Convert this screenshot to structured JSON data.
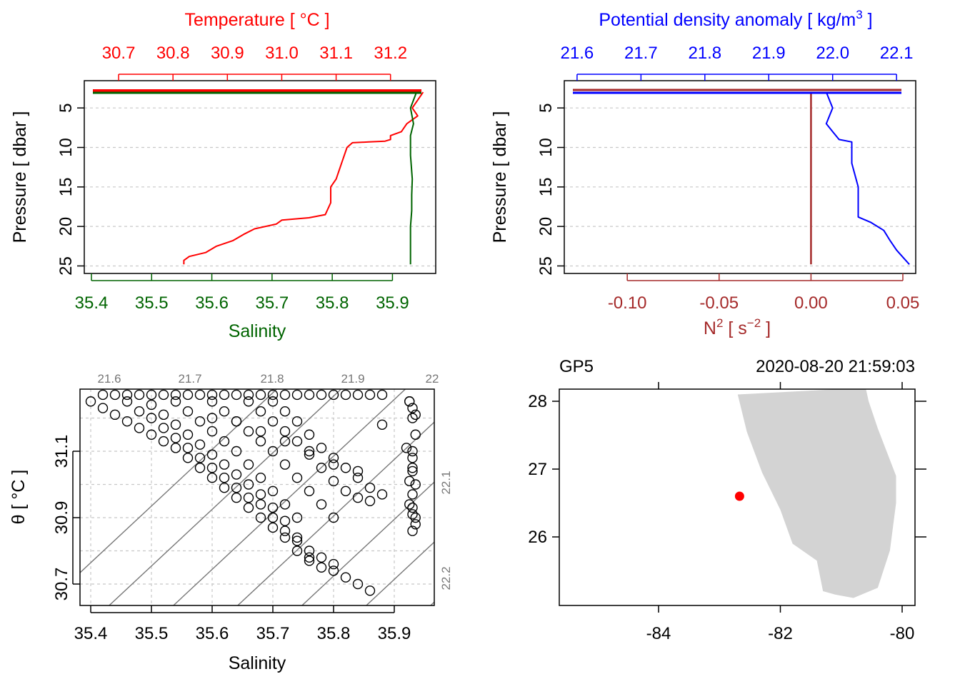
{
  "colors": {
    "temperature": "#ff0000",
    "salinity": "#006400",
    "density": "#0000ff",
    "n2": "#a52a2a",
    "grid": "#c8c8c8",
    "isopycnal": "#777777",
    "land": "#d3d3d3",
    "station": "#ff0000"
  },
  "chart_data": [
    {
      "id": "ts-profile",
      "type": "line",
      "title": "",
      "top_axis": {
        "label": "Temperature [ °C ]",
        "ticks": [
          "30.7",
          "30.8",
          "30.9",
          "31.0",
          "31.1",
          "31.2"
        ],
        "range": [
          30.65,
          31.27
        ]
      },
      "bottom_axis": {
        "label": "Salinity",
        "ticks": [
          "35.4",
          "35.5",
          "35.6",
          "35.7",
          "35.8",
          "35.9"
        ],
        "range": [
          35.4,
          35.96
        ]
      },
      "y_axis": {
        "label": "Pressure [ dbar ]",
        "ticks": [
          "5",
          "10",
          "15",
          "20",
          "25"
        ],
        "range": [
          2,
          25.5
        ],
        "reversed": true
      },
      "grid": true,
      "series": [
        {
          "color_key": "temperature",
          "x": [
            31.26,
            31.24,
            31.25,
            31.23,
            31.22,
            31.2,
            31.2,
            31.19,
            31.16,
            31.13,
            31.12,
            31.11,
            31.1,
            31.09,
            31.09,
            31.08,
            31.05,
            31.0,
            30.99,
            30.95,
            30.93,
            30.91,
            30.88,
            30.86,
            30.83,
            30.82,
            30.82
          ],
          "y": [
            3,
            5,
            6,
            7,
            8,
            8.5,
            9,
            9.2,
            9.3,
            9.4,
            10,
            12,
            14,
            15,
            17,
            18.5,
            18.9,
            19.2,
            19.7,
            20.3,
            21,
            21.8,
            22.5,
            23.3,
            23.8,
            24.3,
            24.8
          ]
        },
        {
          "color_key": "salinity",
          "x": [
            35.94,
            35.93,
            35.935,
            35.93,
            35.93,
            35.93,
            35.933,
            35.932,
            35.932,
            35.93,
            35.93,
            35.93
          ],
          "y": [
            3,
            5,
            7,
            8.5,
            9,
            11,
            14,
            16,
            18,
            20,
            22,
            24.8
          ]
        }
      ]
    },
    {
      "id": "density-n2-profile",
      "type": "line",
      "title": "",
      "top_axis": {
        "label_main": "Potential density anomaly [ kg/m",
        "label_exponent": "3",
        "label_end": " ]",
        "ticks": [
          "21.6",
          "21.7",
          "21.8",
          "21.9",
          "22.0",
          "22.1"
        ],
        "range": [
          21.58,
          22.13
        ]
      },
      "bottom_axis": {
        "label_main": "N",
        "label_exponent": "2",
        "label_unit": " [ s",
        "label_unit_exponent": "−2",
        "label_end": " ]",
        "ticks": [
          "-0.10",
          "-0.05",
          "0.00",
          "0.05"
        ],
        "range": [
          -0.13,
          0.05
        ]
      },
      "y_axis": {
        "label": "Pressure [ dbar ]",
        "ticks": [
          "5",
          "10",
          "15",
          "20",
          "25"
        ],
        "range": [
          2,
          25.5
        ],
        "reversed": true
      },
      "grid": true,
      "series": [
        {
          "color_key": "density",
          "x": [
            21.99,
            22.0,
            21.99,
            22.0,
            22.01,
            22.03,
            22.03,
            22.04,
            22.04,
            22.06,
            22.08,
            22.09,
            22.1,
            22.12
          ],
          "y": [
            3,
            5,
            7,
            8,
            9,
            9.3,
            12,
            15,
            18.8,
            19.5,
            20.5,
            21.8,
            23,
            24.8
          ]
        },
        {
          "color_key": "n2",
          "x": [
            0.0,
            0.0,
            0.0,
            0.0,
            0.0
          ],
          "y": [
            3,
            8,
            14,
            20,
            24.8
          ]
        }
      ]
    },
    {
      "id": "ts-diagram",
      "type": "scatter",
      "title": "",
      "xlabel": "Salinity",
      "ylabel_main": "θ [ °C ]",
      "x_ticks": [
        "35.4",
        "35.5",
        "35.6",
        "35.7",
        "35.8",
        "35.9"
      ],
      "y_ticks": [
        "30.7",
        "30.9",
        "31.1"
      ],
      "xlim": [
        35.38,
        35.97
      ],
      "ylim": [
        30.65,
        31.28
      ],
      "isopycnal_labels": [
        "21.6",
        "21.7",
        "21.8",
        "21.9",
        "22",
        "22.1",
        "22.2"
      ],
      "grid": true,
      "points": {
        "S": [
          35.4,
          35.42,
          35.44,
          35.46,
          35.48,
          35.5,
          35.52,
          35.54,
          35.56,
          35.58,
          35.6,
          35.62,
          35.64,
          35.66,
          35.68,
          35.7,
          35.72,
          35.74,
          35.76,
          35.78,
          35.8,
          35.82,
          35.84,
          35.86,
          35.46,
          35.48,
          35.5,
          35.52,
          35.54,
          35.56,
          35.58,
          35.6,
          35.62,
          35.64,
          35.66,
          35.68,
          35.7,
          35.72,
          35.74,
          35.76,
          35.78,
          35.8,
          35.5,
          35.52,
          35.54,
          35.56,
          35.58,
          35.6,
          35.62,
          35.64,
          35.66,
          35.68,
          35.7,
          35.72,
          35.74,
          35.76,
          35.54,
          35.56,
          35.58,
          35.6,
          35.62,
          35.64,
          35.66,
          35.68,
          35.7,
          35.72,
          35.74,
          35.6,
          35.62,
          35.64,
          35.66,
          35.68,
          35.7,
          35.72,
          35.74,
          35.76,
          35.78,
          35.8,
          35.66,
          35.68,
          35.7,
          35.72,
          35.74,
          35.76,
          35.78,
          35.8,
          35.82,
          35.84,
          35.86,
          35.7,
          35.72,
          35.74,
          35.76,
          35.78,
          35.8,
          35.82,
          35.84,
          35.86,
          35.88,
          35.42,
          35.44,
          35.46,
          35.48,
          35.5,
          35.52,
          35.54,
          35.56,
          35.58,
          35.6,
          35.62,
          35.64,
          35.66,
          35.68,
          35.7,
          35.72,
          35.74,
          35.76,
          35.78,
          35.8,
          35.82,
          35.84,
          35.86,
          35.88,
          35.6,
          35.64,
          35.68,
          35.72,
          35.76,
          35.8,
          35.84,
          35.88,
          35.92,
          35.925,
          35.93,
          35.935,
          35.93,
          35.93,
          35.935,
          35.93,
          35.925,
          35.93,
          35.935,
          35.93,
          35.925,
          35.93,
          35.935,
          35.93,
          35.93,
          35.925,
          35.93,
          35.935
        ],
        "T": [
          31.25,
          31.23,
          31.21,
          31.19,
          31.17,
          31.15,
          31.13,
          31.11,
          31.08,
          31.05,
          31.02,
          30.99,
          30.96,
          30.93,
          30.9,
          30.87,
          30.84,
          30.8,
          30.77,
          30.75,
          30.74,
          30.72,
          30.7,
          30.68,
          31.25,
          31.22,
          31.2,
          31.17,
          31.14,
          31.11,
          31.08,
          31.05,
          31.02,
          30.99,
          30.96,
          30.94,
          30.9,
          30.86,
          30.83,
          30.8,
          30.78,
          30.76,
          31.24,
          31.21,
          31.18,
          31.15,
          31.12,
          31.09,
          31.06,
          31.03,
          31.0,
          30.97,
          30.93,
          30.89,
          30.84,
          30.78,
          31.25,
          31.22,
          31.19,
          31.16,
          31.13,
          31.1,
          31.06,
          31.02,
          30.98,
          30.94,
          30.9,
          31.25,
          31.22,
          31.19,
          31.16,
          31.13,
          31.1,
          31.06,
          31.02,
          30.98,
          30.94,
          30.9,
          31.25,
          31.22,
          31.19,
          31.16,
          31.13,
          31.09,
          31.05,
          31.01,
          30.98,
          30.96,
          30.95,
          31.25,
          31.22,
          31.19,
          31.15,
          31.11,
          31.08,
          31.05,
          31.02,
          30.99,
          30.97,
          31.27,
          31.27,
          31.27,
          31.27,
          31.27,
          31.27,
          31.27,
          31.27,
          31.27,
          31.27,
          31.27,
          31.27,
          31.27,
          31.27,
          31.27,
          31.27,
          31.27,
          31.27,
          31.27,
          31.27,
          31.27,
          31.27,
          31.27,
          31.27,
          31.2,
          31.19,
          31.16,
          31.13,
          31.1,
          31.06,
          31.04,
          31.18,
          31.11,
          31.25,
          31.2,
          31.15,
          31.1,
          31.05,
          31.0,
          30.97,
          30.94,
          30.91,
          30.88,
          30.86,
          31.25,
          31.23,
          31.21,
          31.08,
          31.04,
          31.01,
          30.93,
          30.9
        ]
      }
    },
    {
      "id": "station-map",
      "type": "scatter",
      "title_left": "GP5",
      "title_right": "2020-08-20 21:59:03",
      "x_ticks": [
        "-84",
        "-82",
        "-80"
      ],
      "y_ticks": [
        "26",
        "27",
        "28"
      ],
      "xlim": [
        -85.7,
        -79.8
      ],
      "ylim": [
        24.9,
        28.2
      ],
      "land": {
        "lon": [
          -82.7,
          -82.55,
          -82.3,
          -82.0,
          -81.8,
          -81.4,
          -81.3,
          -81.1,
          -80.8,
          -80.4,
          -80.2,
          -80.1,
          -80.1,
          -80.4,
          -80.55,
          -80.6
        ],
        "lat": [
          28.1,
          27.55,
          26.95,
          26.4,
          25.9,
          25.65,
          25.2,
          25.15,
          25.1,
          25.25,
          25.8,
          26.5,
          26.9,
          27.6,
          28.0,
          28.2
        ]
      },
      "station": {
        "lon": -82.67,
        "lat": 26.6
      }
    }
  ]
}
